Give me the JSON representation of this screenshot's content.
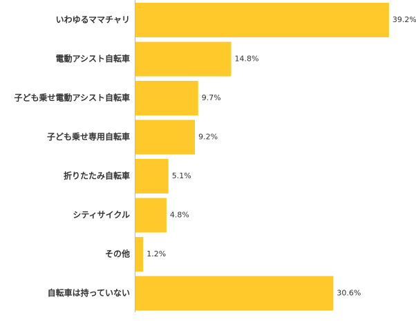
{
  "chart_data": {
    "type": "hbar",
    "categories": [
      "いわゆるママチャリ",
      "電動アシスト自転車",
      "子ども乗せ電動アシスト自転車",
      "子ども乗せ専用自転車",
      "折りたたみ自転車",
      "シティサイクル",
      "その他",
      "自転車は持っていない"
    ],
    "values": [
      39.2,
      14.8,
      9.7,
      9.2,
      5.1,
      4.8,
      1.2,
      30.6
    ],
    "value_labels": [
      "39.2%",
      "14.8%",
      "9.7%",
      "9.2%",
      "5.1%",
      "4.8%",
      "1.2%",
      "30.6%"
    ],
    "color": "#ffc92c"
  }
}
